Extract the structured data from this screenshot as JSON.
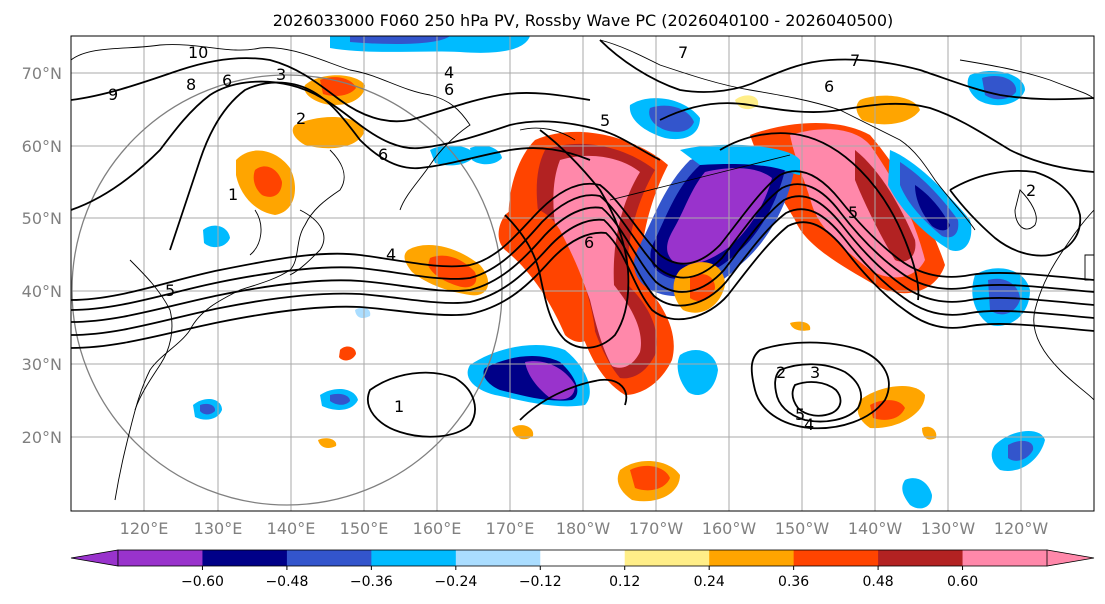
{
  "title": "2026033000 F060 250 hPa PV, Rossby Wave PC (2026040100 - 2026040500)",
  "lat_labels": [
    "70°N",
    "60°N",
    "50°N",
    "40°N",
    "30°N",
    "20°N"
  ],
  "lon_labels": [
    "120°E",
    "130°E",
    "140°E",
    "150°E",
    "160°E",
    "170°E",
    "180°W",
    "170°W",
    "160°W",
    "150°W",
    "140°W",
    "130°W",
    "120°W"
  ],
  "colorbar": {
    "colors": [
      "#9933cc",
      "#000088",
      "#3355cc",
      "#00bbff",
      "#aaddff",
      "#ffffff",
      "#ffee88",
      "#ffa500",
      "#ff4400",
      "#b22222",
      "#ff88aa"
    ],
    "tick_labels": [
      "−0.60",
      "−0.48",
      "−0.36",
      "−0.24",
      "−0.12",
      "0.12",
      "0.24",
      "0.36",
      "0.48",
      "0.60"
    ]
  },
  "contour_labels": [
    "10",
    "9",
    "8",
    "6",
    "3",
    "2",
    "1",
    "4",
    "6",
    "5",
    "6",
    "7",
    "7",
    "6",
    "5",
    "4",
    "5",
    "6",
    "2",
    "3",
    "5",
    "4",
    "2",
    "1"
  ],
  "colors": {
    "grid": "#aaaaaa",
    "contour": "#000000",
    "coast": "#000000",
    "ring": "#808080"
  }
}
